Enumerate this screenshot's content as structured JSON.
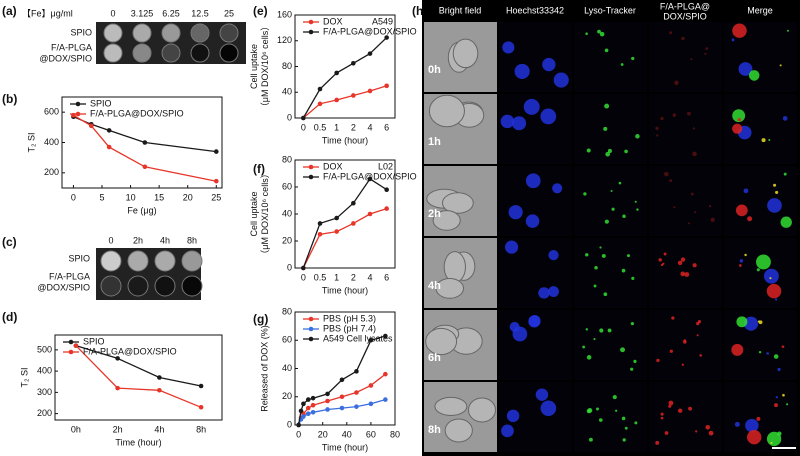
{
  "figure": {
    "panel_labels": [
      "(a)",
      "(b)",
      "(c)",
      "(d)",
      "(e)",
      "(f)",
      "(g)",
      "(h)"
    ],
    "phantom_a": {
      "header": "【Fe】μg/ml",
      "columns": [
        "0",
        "3.125",
        "6.25",
        "12.5",
        "25"
      ],
      "rows": [
        [
          "SPIO"
        ],
        [
          "F/A-PLGA",
          "@DOX/SPIO"
        ]
      ]
    },
    "phantom_c": {
      "columns": [
        "0",
        "2h",
        "4h",
        "8h"
      ],
      "rows": [
        [
          "SPIO"
        ],
        [
          "F/A-PLGA",
          "@DOX/SPIO"
        ]
      ]
    },
    "microscopy": {
      "columns": [
        [
          "Bright field"
        ],
        [
          "Hoechst33342"
        ],
        [
          "Lyso-Tracker"
        ],
        [
          "F/A-PLGA@",
          "DOX/SPIO"
        ],
        [
          "Merge"
        ]
      ],
      "rows": [
        "0h",
        "1h",
        "2h",
        "4h",
        "6h",
        "8h"
      ]
    }
  },
  "chart_data": [
    {
      "type": "line",
      "x_label": "Fe (μg)",
      "y_label": [
        "T₂ SI"
      ],
      "legend": "upper left",
      "x": [
        0,
        3.125,
        6.25,
        12.5,
        25
      ],
      "xlim": [
        -2,
        26
      ],
      "xticks": [
        0,
        5,
        10,
        15,
        20,
        25
      ],
      "ylim": [
        100,
        700
      ],
      "yticks": [
        200,
        400,
        600
      ],
      "series": [
        {
          "name": "SPIO",
          "color": "#1a1a1a",
          "values": [
            570,
            520,
            480,
            400,
            340
          ]
        },
        {
          "name": "F/A-PLGA@DOX/SPIO",
          "color": "#e8352a",
          "values": [
            580,
            510,
            370,
            240,
            145
          ]
        }
      ]
    },
    {
      "type": "line",
      "x_label": "Time (hour)",
      "y_label": [
        "T₂ SI"
      ],
      "legend": "upper left",
      "categories": [
        "0h",
        "2h",
        "4h",
        "8h"
      ],
      "ylim": [
        170,
        570
      ],
      "yticks": [
        200,
        300,
        400,
        500
      ],
      "series": [
        {
          "name": "SPIO",
          "color": "#1a1a1a",
          "values": [
            520,
            460,
            370,
            330
          ]
        },
        {
          "name": "F/A-PLGA@DOX/SPIO",
          "color": "#e8352a",
          "values": [
            520,
            320,
            310,
            230
          ]
        }
      ]
    },
    {
      "type": "line",
      "x_label": "Time (hour)",
      "y_label": [
        "Cell uptake",
        "（μM DOX/10⁶ cells）"
      ],
      "annotation": "A549",
      "legend": "upper left",
      "categories": [
        "0",
        "0.5",
        "1",
        "2",
        "4",
        "6"
      ],
      "ylim": [
        0,
        160
      ],
      "yticks": [
        0,
        40,
        80,
        120,
        160
      ],
      "series": [
        {
          "name": "DOX",
          "color": "#e8352a",
          "values": [
            0,
            22,
            28,
            35,
            42,
            50
          ]
        },
        {
          "name": "F/A-PLGA@DOX/SPIO",
          "color": "#1a1a1a",
          "values": [
            0,
            45,
            70,
            85,
            100,
            125
          ]
        }
      ]
    },
    {
      "type": "line",
      "x_label": "Time (hour)",
      "y_label": [
        "Cell uptake",
        "（μM DOX/10⁶ cells）"
      ],
      "annotation": "L02",
      "legend": "upper left",
      "categories": [
        "0",
        "0.5",
        "1",
        "2",
        "4",
        "6"
      ],
      "ylim": [
        0,
        80
      ],
      "yticks": [
        0,
        20,
        40,
        60,
        80
      ],
      "series": [
        {
          "name": "DOX",
          "color": "#e8352a",
          "values": [
            0,
            25,
            27,
            33,
            40,
            44
          ]
        },
        {
          "name": "F/A-PLGA@DOX/SPIO",
          "color": "#1a1a1a",
          "values": [
            0,
            33,
            37,
            48,
            66,
            58
          ]
        }
      ]
    },
    {
      "type": "line",
      "x_label": "Time (hour)",
      "y_label": [
        "Released of DOX (%)"
      ],
      "legend": "upper left",
      "x": [
        0,
        2,
        4,
        8,
        12,
        24,
        36,
        48,
        60,
        72
      ],
      "xlim": [
        -3,
        80
      ],
      "xticks": [
        0,
        20,
        40,
        60,
        80
      ],
      "ylim": [
        0,
        80
      ],
      "yticks": [
        0,
        20,
        40,
        60,
        80
      ],
      "series": [
        {
          "name": "PBS (pH 5.3)",
          "color": "#e8352a",
          "values": [
            0,
            5,
            8,
            12,
            14,
            17,
            20,
            23,
            28,
            36
          ]
        },
        {
          "name": "PBS (pH 7.4)",
          "color": "#3b6fe0",
          "values": [
            0,
            4,
            6,
            8,
            9,
            11,
            12,
            13,
            15,
            18
          ]
        },
        {
          "name": "A549 Cell lysates",
          "color": "#1a1a1a",
          "values": [
            0,
            10,
            15,
            18,
            19,
            22,
            32,
            38,
            60,
            63
          ]
        }
      ]
    }
  ]
}
